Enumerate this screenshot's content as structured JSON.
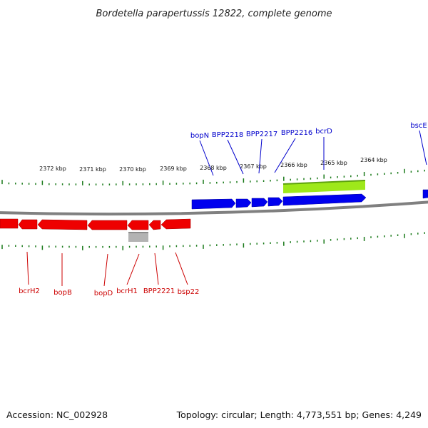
{
  "title": "Bordetella parapertussis 12822, complete genome",
  "footer": {
    "accession": "Accession: NC_002928",
    "summary": "Topology: circular; Length: 4,773,551 bp; Genes: 4,249"
  },
  "colors": {
    "forward_gene": "#0000ee",
    "reverse_gene": "#ee0000",
    "pseudogene": "#b3b3b3",
    "feature": "#9ee81a",
    "ticks": "#1a7a1a",
    "backbone": "#808080",
    "label_forward": "#0000cc",
    "label_reverse": "#cc0000"
  },
  "scale_labels": [
    "2372 kbp",
    "2371 kbp",
    "2370 kbp",
    "2369 kbp",
    "2368 kbp",
    "2367 kbp",
    "2366 kbp",
    "2365 kbp",
    "2364 kbp"
  ],
  "forward_labels": [
    "bopN",
    "BPP2218",
    "BPP2217",
    "BPP2216",
    "bcrD",
    "bscE"
  ],
  "reverse_labels": [
    "bcrH2",
    "bopB",
    "bopD",
    "bcrH1",
    "BPP2221",
    "bsp22"
  ]
}
